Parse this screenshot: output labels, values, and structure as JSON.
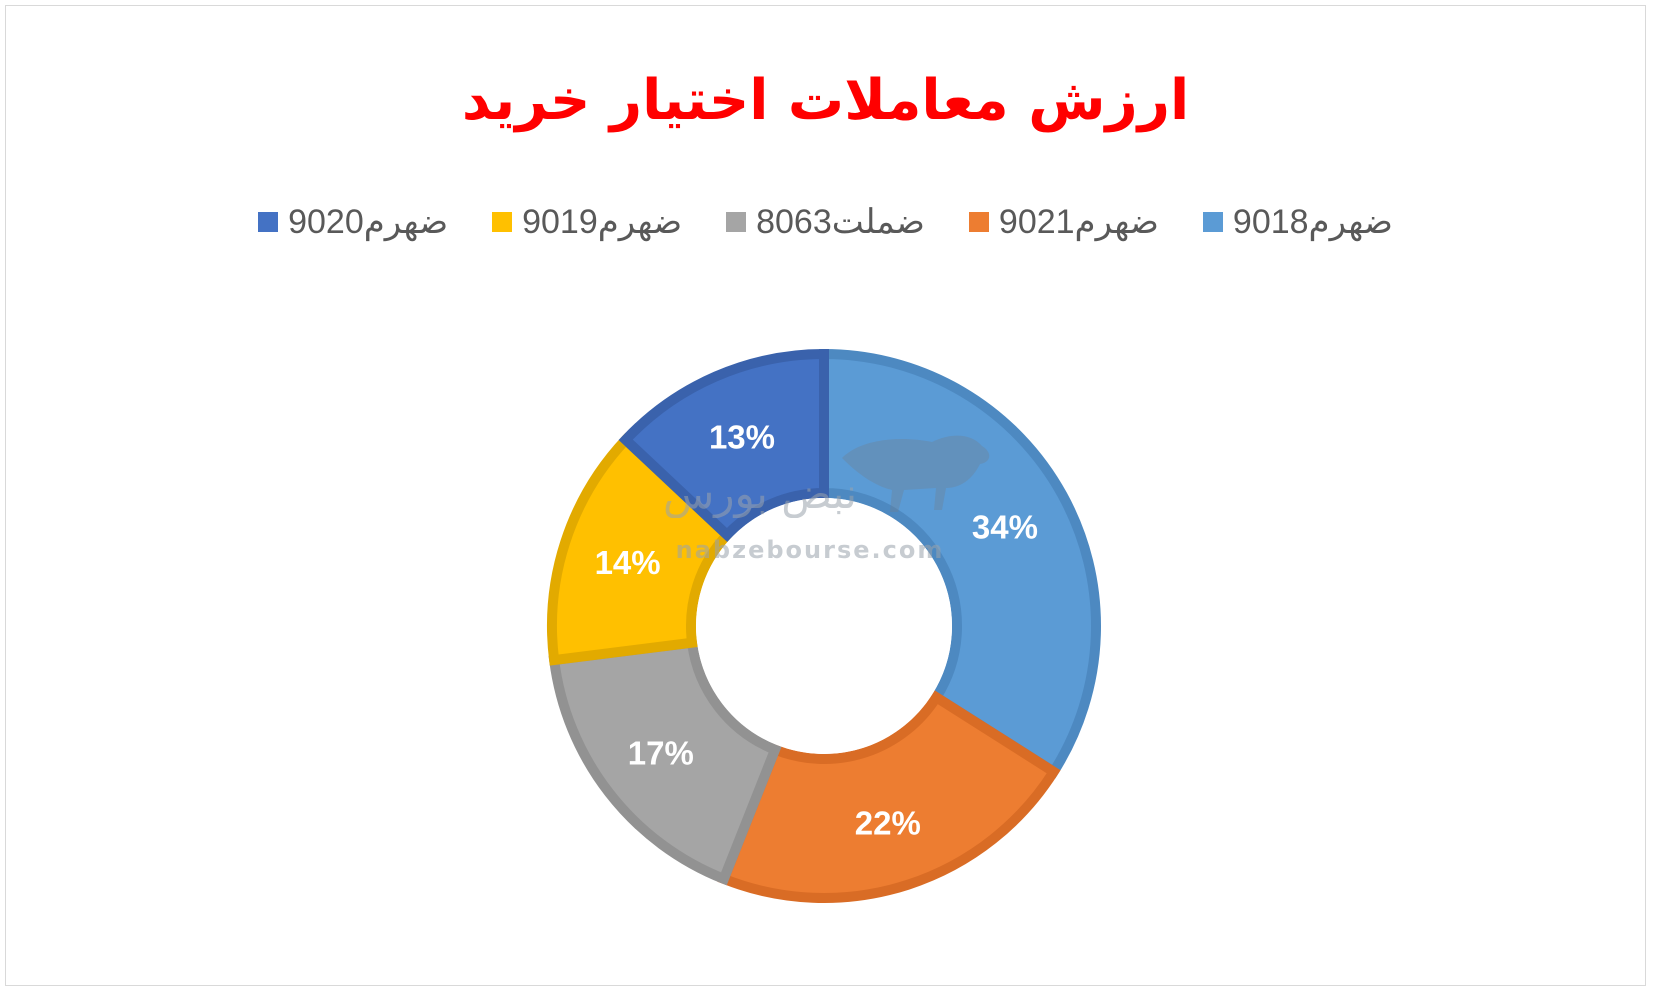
{
  "chart_data": {
    "type": "pie",
    "variant": "donut",
    "title": "ارزش معاملات اختیار خرید",
    "categories": [
      "ضهرم9018",
      "ضهرم9021",
      "ضملت8063",
      "ضهرم9019",
      "ضهرم9020"
    ],
    "values": [
      34,
      22,
      17,
      14,
      13
    ],
    "data_labels": [
      "34%",
      "22%",
      "17%",
      "14%",
      "13%"
    ],
    "colors": [
      "#5b9bd5",
      "#ed7d31",
      "#a5a5a5",
      "#ffc000",
      "#4472c4"
    ],
    "border_colors": [
      "#4d89c1",
      "#d96c25",
      "#929292",
      "#e2aa00",
      "#3a62ac"
    ],
    "legend_position": "top",
    "start_angle_deg": 0,
    "direction": "clockwise"
  },
  "watermark": {
    "brand_text": "نبض بورس",
    "site_text": "nabzebourse.com",
    "icon": "bull-icon"
  }
}
